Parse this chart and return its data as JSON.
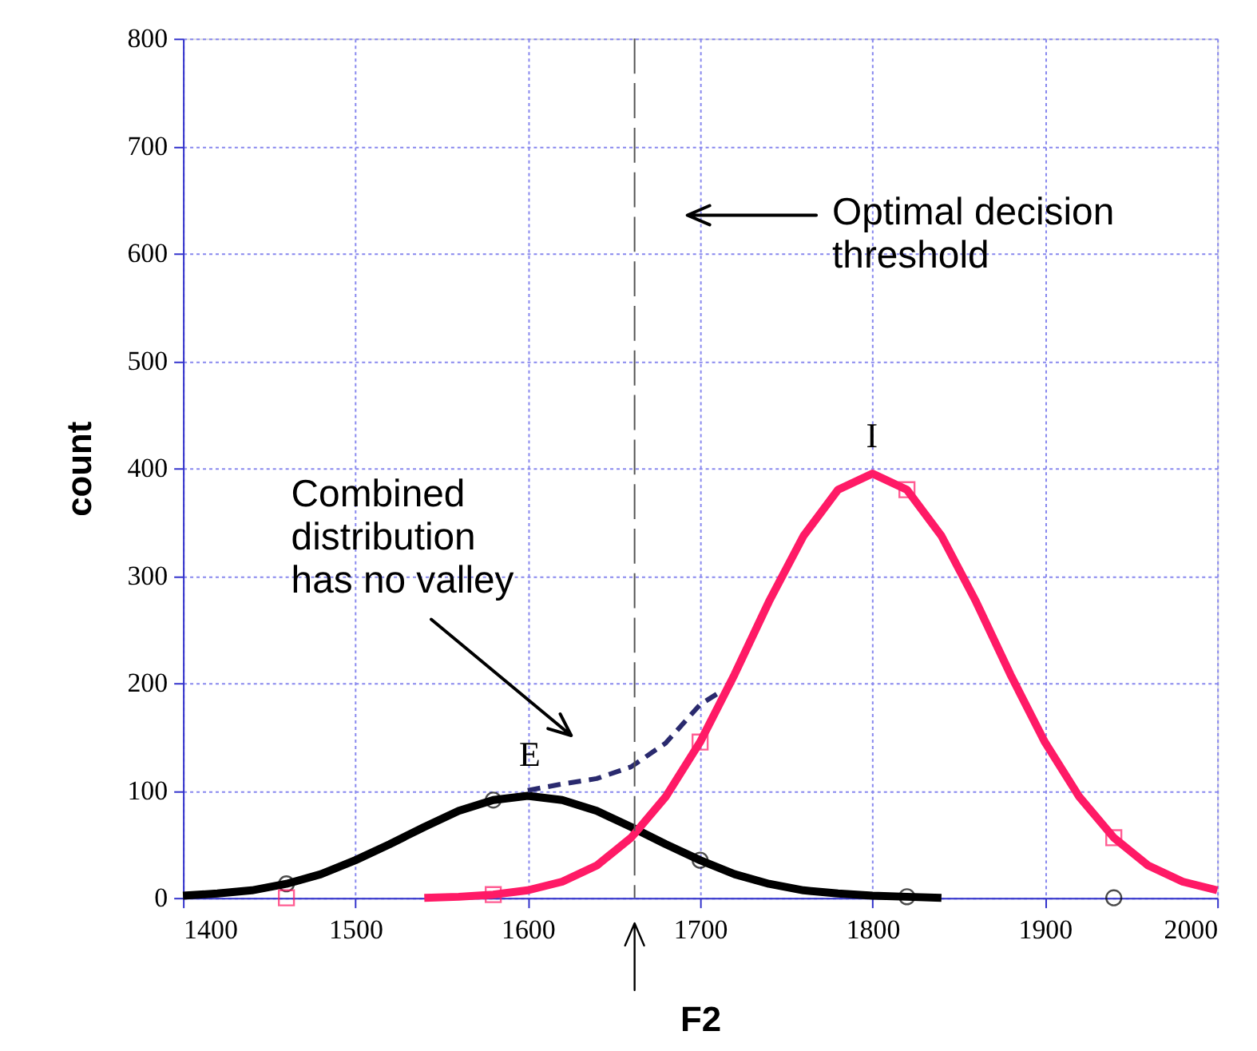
{
  "chart_data": {
    "type": "line",
    "xlabel": "F2",
    "ylabel": "count",
    "xlim": [
      1400,
      2000
    ],
    "ylim": [
      0,
      800
    ],
    "xticks": [
      1400,
      1500,
      1600,
      1700,
      1800,
      1900,
      2000
    ],
    "yticks": [
      0,
      100,
      200,
      300,
      400,
      500,
      600,
      700,
      800
    ],
    "grid": true,
    "line_style": "solid",
    "series": [
      {
        "color": "#000000",
        "x": [
          1400,
          1420,
          1440,
          1460,
          1480,
          1500,
          1520,
          1540,
          1560,
          1580,
          1600,
          1620,
          1640,
          1660,
          1680,
          1700,
          1720,
          1740,
          1760,
          1780,
          1800,
          1820,
          1840
        ],
        "values": [
          2,
          4,
          7,
          13,
          22,
          35,
          50,
          66,
          81,
          91,
          95,
          91,
          81,
          66,
          50,
          35,
          22,
          13,
          7,
          4,
          2,
          1,
          0
        ]
      },
      {
        "color": "#ff1a66",
        "x": [
          1540,
          1560,
          1580,
          1600,
          1620,
          1640,
          1660,
          1680,
          1700,
          1720,
          1740,
          1760,
          1780,
          1800,
          1820,
          1840,
          1860,
          1880,
          1900,
          1920,
          1940,
          1960,
          1980,
          2000
        ],
        "values": [
          0,
          1,
          3,
          7,
          15,
          30,
          56,
          94,
          145,
          208,
          276,
          337,
          380,
          395,
          380,
          337,
          276,
          208,
          145,
          94,
          56,
          30,
          15,
          7
        ]
      },
      {
        "color": "#2a2a6e",
        "line_style": "dashed",
        "x": [
          1600,
          1620,
          1640,
          1660,
          1680,
          1700,
          1712
        ],
        "values": [
          100,
          106,
          111,
          122,
          144,
          180,
          192
        ]
      },
      {
        "type": "scatter",
        "marker": "circle",
        "color": "#000000",
        "x": [
          1460,
          1580,
          1700,
          1820,
          1940
        ],
        "values": [
          13,
          91,
          35,
          1,
          0
        ]
      },
      {
        "type": "scatter",
        "marker": "square",
        "color": "#ff1a66",
        "x": [
          1460,
          1580,
          1700,
          1820,
          1940
        ],
        "values": [
          0,
          3,
          145,
          380,
          56
        ]
      }
    ],
    "ref_lines": [
      {
        "axis": "x",
        "value": 1662,
        "color": "#555555",
        "line_style": "dashed"
      }
    ],
    "annotations": [
      "Optimal decision\nthreshold",
      "Combined\ndistribution\nhas no valley",
      "E",
      "I"
    ]
  }
}
